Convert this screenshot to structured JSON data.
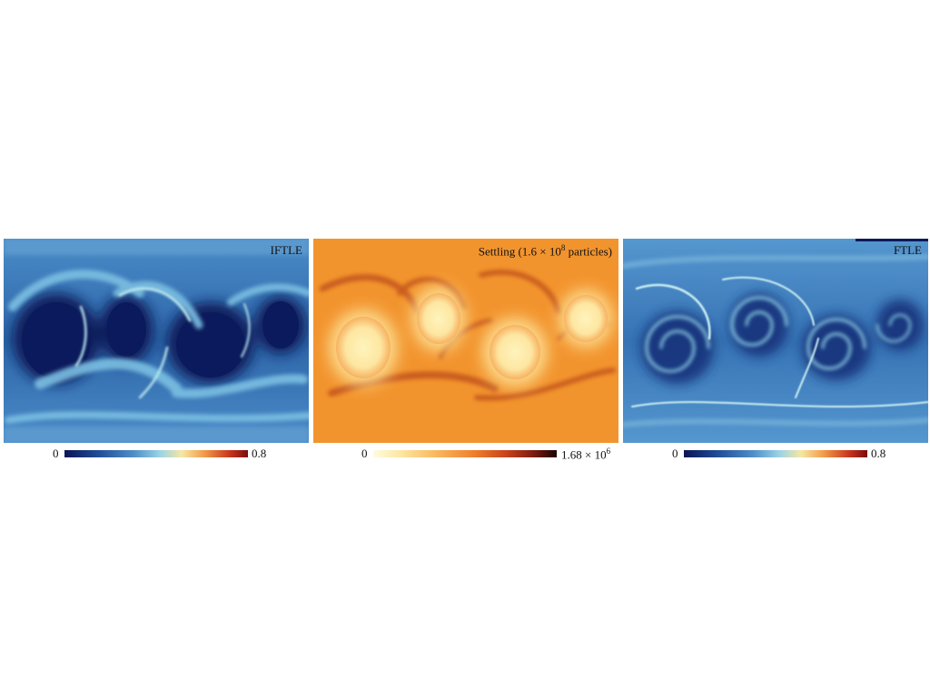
{
  "panels": [
    {
      "id": "iftle",
      "title": "IFTLE",
      "colorbar": {
        "min": "0",
        "max": "0.8"
      }
    },
    {
      "id": "settling",
      "title_prefix": "Settling (1.6 × 10",
      "title_exp": "8",
      "title_suffix": " particles)",
      "colorbar": {
        "min": "0",
        "max_prefix": "1.68 × 10",
        "max_exp": "6"
      }
    },
    {
      "id": "ftle",
      "title": "FTLE",
      "colorbar": {
        "min": "0",
        "max": "0.8"
      }
    }
  ],
  "colors": {
    "iftle_background": "#2f6eb0",
    "settling_background": "#f2942e",
    "ftle_background": "#3a7cba"
  }
}
